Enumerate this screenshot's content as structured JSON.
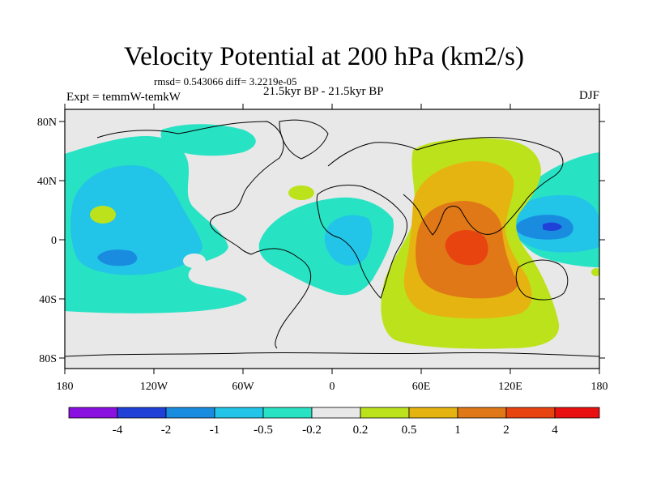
{
  "title": "Velocity Potential at 200 hPa (km2/s)",
  "stats": "rmsd= 0.543066 diff= 3.2219e-05",
  "left_label": "Expt = temmW-temkW",
  "center_label": "21.5kyr BP - 21.5kyr BP",
  "right_label": "DJF",
  "x_ticks": [
    "180",
    "120W",
    "60W",
    "0",
    "60E",
    "120E",
    "180"
  ],
  "y_ticks": [
    "80N",
    "40N",
    "0",
    "40S",
    "80S"
  ],
  "colorbar": {
    "labels": [
      "-4",
      "-2",
      "-1",
      "-0.5",
      "-0.2",
      "0.2",
      "0.5",
      "1",
      "2",
      "4"
    ],
    "colors": [
      "#8a10e0",
      "#2040d8",
      "#1a8ce0",
      "#22c4e8",
      "#28e2c4",
      "#e8e8e8",
      "#bce21c",
      "#e6b410",
      "#e07818",
      "#e84410",
      "#e81010"
    ]
  },
  "chart_data": {
    "type": "heatmap",
    "title": "Velocity Potential at 200 hPa (km2/s)",
    "units": "km2/s",
    "season": "DJF",
    "x_range": [
      -180,
      180
    ],
    "y_range": [
      -90,
      90
    ],
    "levels": [
      -4,
      -2,
      -1,
      -0.5,
      -0.2,
      0.2,
      0.5,
      1,
      2,
      4
    ],
    "features": [
      {
        "name": "Indo-Pacific positive maximum",
        "value_range": "2 to 4",
        "center_lon": 95,
        "center_lat": -5
      },
      {
        "name": "West Pacific negative minimum",
        "value_range": "-2 to -1",
        "center_lon": 145,
        "center_lat": 10
      },
      {
        "name": "South Pacific negative minimum",
        "value_range": "-2 to -1",
        "center_lon": -142,
        "center_lat": -12
      }
    ]
  }
}
